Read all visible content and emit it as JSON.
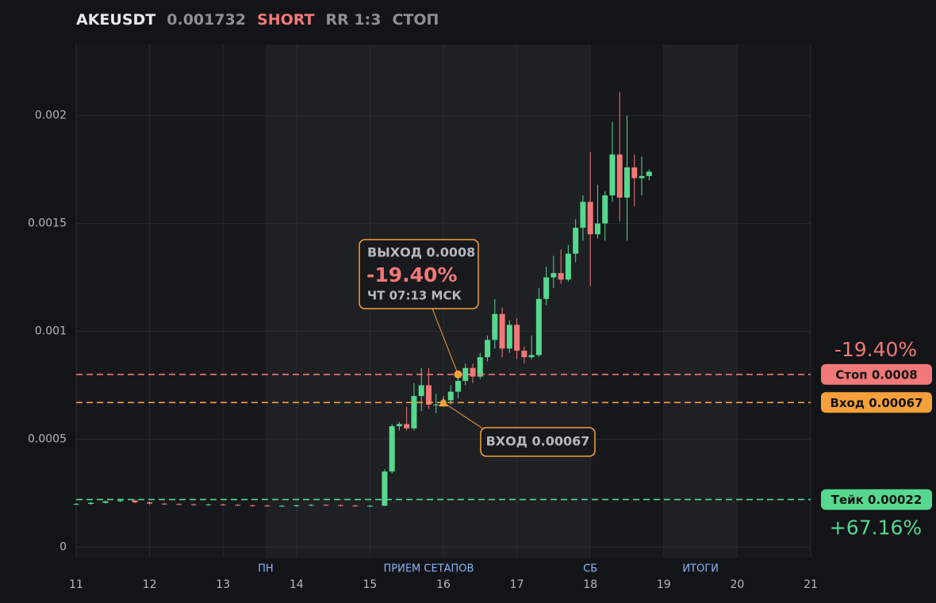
{
  "header": {
    "symbol": "AKEUSDT",
    "price": "0.001732",
    "side": "SHORT",
    "rr": "RR 1:3",
    "status": "СТОП"
  },
  "chart_data": {
    "type": "candlestick",
    "xlim": [
      11,
      21
    ],
    "xticks": [
      11,
      12,
      13,
      14,
      15,
      16,
      17,
      18,
      19,
      20,
      21
    ],
    "ylim": [
      -5e-05,
      0.00233
    ],
    "yticks": [
      0,
      0.0005,
      0.001,
      0.0015,
      0.002
    ],
    "grid": true,
    "up_color": "#56d88f",
    "down_color": "#f07878",
    "shaded": [
      [
        13.58,
        18
      ],
      [
        19,
        20
      ]
    ],
    "sessions": [
      {
        "x": 13.58,
        "label": "ПН"
      },
      {
        "x": 15.8,
        "label": "ПРИЕМ СЕТАПОВ"
      },
      {
        "x": 18,
        "label": "СБ"
      },
      {
        "x": 19.5,
        "label": "ИТОГИ"
      }
    ],
    "x": [
      11,
      11.2,
      11.4,
      11.6,
      11.8,
      12,
      12.2,
      12.4,
      12.6,
      12.8,
      13,
      13.2,
      13.4,
      13.6,
      13.8,
      14,
      14.2,
      14.4,
      14.6,
      14.8,
      15,
      15.2,
      15.3,
      15.4,
      15.5,
      15.6,
      15.7,
      15.8,
      15.9,
      16,
      16.1,
      16.2,
      16.3,
      16.4,
      16.5,
      16.6,
      16.7,
      16.8,
      16.9,
      17,
      17.1,
      17.2,
      17.3,
      17.4,
      17.5,
      17.6,
      17.7,
      17.8,
      17.9,
      18,
      18.1,
      18.2,
      18.3,
      18.4,
      18.5,
      18.6,
      18.7,
      18.8
    ],
    "open": [
      0.000198,
      0.0002,
      0.000205,
      0.000212,
      0.000216,
      0.000207,
      0.000201,
      0.000199,
      0.000198,
      0.000196,
      0.000197,
      0.000195,
      0.000193,
      0.000192,
      0.00019,
      0.000191,
      0.000193,
      0.000195,
      0.000194,
      0.000192,
      0.00019,
      0.000191,
      0.00035,
      0.00056,
      0.00057,
      0.00055,
      0.0007,
      0.00075,
      0.00066,
      0.00066,
      0.00068,
      0.00072,
      0.00077,
      0.00083,
      0.00079,
      0.00088,
      0.00096,
      0.00108,
      0.00092,
      0.00103,
      0.00091,
      0.00088,
      0.00089,
      0.00115,
      0.00125,
      0.00127,
      0.00124,
      0.00136,
      0.00148,
      0.0016,
      0.00145,
      0.0015,
      0.00163,
      0.00182,
      0.00162,
      0.00176,
      0.00171,
      0.00172
    ],
    "high": [
      0.000204,
      0.000209,
      0.000216,
      0.00022,
      0.00022,
      0.000211,
      0.000205,
      0.000203,
      0.000202,
      0.000201,
      0.000201,
      0.000199,
      0.000197,
      0.000196,
      0.000195,
      0.000197,
      0.000199,
      0.000199,
      0.000198,
      0.000196,
      0.000195,
      0.00036,
      0.00057,
      0.00058,
      0.00065,
      0.00076,
      0.00083,
      0.00083,
      0.00071,
      0.0007,
      0.00075,
      0.0008,
      0.00085,
      0.00085,
      0.0009,
      0.00098,
      0.00115,
      0.00111,
      0.00105,
      0.00106,
      0.00093,
      0.00098,
      0.0012,
      0.0013,
      0.00135,
      0.00138,
      0.0014,
      0.00152,
      0.00163,
      0.00183,
      0.00168,
      0.00165,
      0.00197,
      0.00211,
      0.002,
      0.00182,
      0.00181,
      0.00175
    ],
    "low": [
      0.000194,
      0.000196,
      0.000201,
      0.000208,
      0.000203,
      0.000197,
      0.000195,
      0.000194,
      0.000192,
      0.000192,
      0.000191,
      0.000189,
      0.000188,
      0.000186,
      0.000186,
      0.000187,
      0.000189,
      0.00019,
      0.000188,
      0.000186,
      0.000186,
      0.00019,
      0.00034,
      0.00054,
      0.00054,
      0.00054,
      0.00063,
      0.00064,
      0.00062,
      0.00065,
      0.00066,
      0.00069,
      0.00075,
      0.00076,
      0.00078,
      0.00086,
      0.00092,
      0.00088,
      0.0009,
      0.00087,
      0.00085,
      0.00087,
      0.00088,
      0.00112,
      0.0012,
      0.00122,
      0.00123,
      0.00132,
      0.00142,
      0.00121,
      0.00143,
      0.00142,
      0.0016,
      0.00151,
      0.00142,
      0.00158,
      0.00163,
      0.0017
    ],
    "close": [
      0.0002,
      0.000205,
      0.000212,
      0.000216,
      0.000207,
      0.000201,
      0.000199,
      0.000198,
      0.000196,
      0.000197,
      0.000195,
      0.000193,
      0.000192,
      0.00019,
      0.000191,
      0.000193,
      0.000195,
      0.000194,
      0.000192,
      0.00019,
      0.000191,
      0.00035,
      0.00056,
      0.00057,
      0.00055,
      0.0007,
      0.00075,
      0.00066,
      0.00066,
      0.00068,
      0.00072,
      0.00077,
      0.00083,
      0.00079,
      0.00088,
      0.00096,
      0.00108,
      0.00092,
      0.00103,
      0.00091,
      0.00088,
      0.00089,
      0.00115,
      0.00125,
      0.00127,
      0.00124,
      0.00136,
      0.00148,
      0.0016,
      0.00145,
      0.0015,
      0.00163,
      0.00182,
      0.00162,
      0.00176,
      0.00171,
      0.00172,
      0.00174
    ],
    "levels": [
      {
        "value": 0.0008,
        "label": "Стоп 0.0008",
        "color": "#f07878",
        "result": "-19.40%"
      },
      {
        "value": 0.00067,
        "label": "Вход 0.00067",
        "color": "#f5a03a"
      },
      {
        "value": 0.00022,
        "label": "Тейк 0.00022",
        "color": "#56d88f",
        "result": "+67.16%"
      }
    ],
    "exit": {
      "x": 16.2,
      "value": 0.0008,
      "title": "ВЫХОД 0.0008",
      "pct": "-19.40%",
      "time": "ЧТ 07:13 МСК"
    },
    "entry": {
      "x": 16.0,
      "value": 0.00067,
      "label": "ВХОД 0.00067"
    }
  }
}
